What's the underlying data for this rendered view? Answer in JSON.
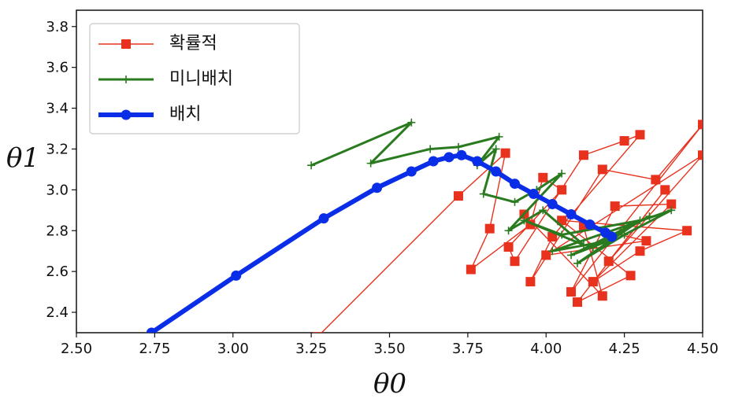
{
  "chart_data": {
    "type": "line",
    "title": "",
    "xlabel": "θ0",
    "ylabel": "θ1",
    "xlim": [
      2.5,
      4.5
    ],
    "ylim": [
      2.3,
      3.88
    ],
    "xticks": [
      "2.50",
      "2.75",
      "3.00",
      "3.25",
      "3.50",
      "3.75",
      "4.00",
      "4.25",
      "4.50"
    ],
    "yticks": [
      "2.4",
      "2.6",
      "2.8",
      "3.0",
      "3.2",
      "3.4",
      "3.6",
      "3.8"
    ],
    "grid": false,
    "legend_position": "top-left",
    "series": [
      {
        "name": "확률적",
        "color": "#e8321e",
        "marker": "square",
        "points": [
          [
            3.27,
            2.28
          ],
          [
            3.72,
            2.97
          ],
          [
            3.87,
            3.18
          ],
          [
            3.82,
            2.81
          ],
          [
            3.76,
            2.61
          ],
          [
            3.95,
            2.83
          ],
          [
            3.99,
            3.06
          ],
          [
            4.05,
            3.0
          ],
          [
            3.88,
            2.72
          ],
          [
            3.9,
            2.65
          ],
          [
            4.12,
            3.17
          ],
          [
            4.25,
            3.24
          ],
          [
            4.3,
            3.27
          ],
          [
            4.02,
            2.77
          ],
          [
            3.95,
            2.55
          ],
          [
            4.18,
            3.1
          ],
          [
            4.35,
            3.05
          ],
          [
            4.5,
            3.32
          ],
          [
            4.08,
            2.5
          ],
          [
            4.22,
            2.92
          ],
          [
            4.4,
            2.93
          ],
          [
            4.15,
            2.55
          ],
          [
            4.3,
            2.7
          ],
          [
            4.45,
            2.8
          ],
          [
            4.05,
            2.85
          ],
          [
            4.27,
            2.58
          ],
          [
            4.1,
            2.45
          ],
          [
            4.38,
            3.0
          ],
          [
            4.2,
            2.65
          ],
          [
            4.5,
            3.17
          ],
          [
            4.0,
            2.68
          ],
          [
            4.32,
            2.75
          ],
          [
            4.12,
            2.82
          ],
          [
            4.18,
            2.48
          ],
          [
            3.93,
            2.88
          ]
        ]
      },
      {
        "name": "미니배치",
        "color": "#2a7a1f",
        "marker": "plus",
        "points": [
          [
            3.25,
            3.12
          ],
          [
            3.57,
            3.33
          ],
          [
            3.44,
            3.13
          ],
          [
            3.63,
            3.2
          ],
          [
            3.72,
            3.21
          ],
          [
            3.85,
            3.26
          ],
          [
            3.78,
            3.12
          ],
          [
            3.84,
            3.2
          ],
          [
            3.8,
            2.98
          ],
          [
            3.9,
            2.94
          ],
          [
            3.97,
            3.0
          ],
          [
            4.05,
            3.08
          ],
          [
            3.88,
            2.8
          ],
          [
            3.99,
            2.9
          ],
          [
            4.12,
            2.73
          ],
          [
            3.93,
            2.85
          ],
          [
            4.05,
            2.78
          ],
          [
            4.3,
            2.85
          ],
          [
            4.1,
            2.64
          ],
          [
            4.25,
            2.78
          ],
          [
            4.4,
            2.9
          ],
          [
            4.02,
            2.7
          ],
          [
            4.2,
            2.75
          ],
          [
            4.08,
            2.68
          ],
          [
            4.33,
            2.87
          ],
          [
            4.15,
            2.72
          ]
        ]
      },
      {
        "name": "배치",
        "color": "#0a2ee8",
        "marker": "circle",
        "points": [
          [
            2.74,
            2.3
          ],
          [
            3.01,
            2.58
          ],
          [
            3.29,
            2.86
          ],
          [
            3.46,
            3.01
          ],
          [
            3.57,
            3.09
          ],
          [
            3.64,
            3.14
          ],
          [
            3.69,
            3.16
          ],
          [
            3.73,
            3.17
          ],
          [
            3.78,
            3.14
          ],
          [
            3.84,
            3.09
          ],
          [
            3.9,
            3.03
          ],
          [
            3.96,
            2.98
          ],
          [
            4.02,
            2.93
          ],
          [
            4.08,
            2.88
          ],
          [
            4.14,
            2.83
          ],
          [
            4.19,
            2.79
          ],
          [
            4.21,
            2.77
          ]
        ]
      }
    ]
  }
}
